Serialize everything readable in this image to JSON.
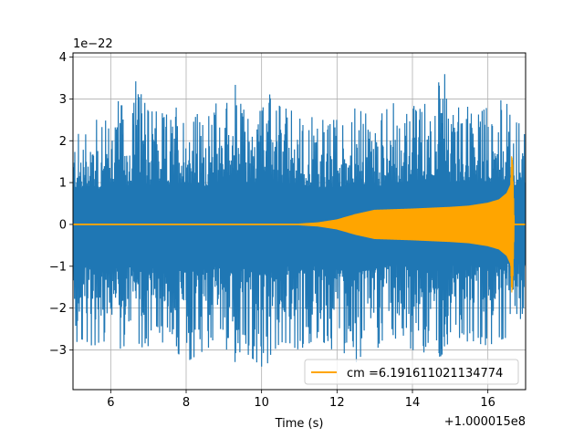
{
  "chart_data": {
    "type": "line",
    "title": "",
    "xlabel": "Time (s)",
    "ylabel": "",
    "y_scale_text": "1e−22",
    "x_offset_text": "+1.000015e8",
    "xlim": [
      5.0,
      17.0
    ],
    "ylim": [
      -3.95,
      4.1
    ],
    "xticks": [
      6,
      8,
      10,
      12,
      14,
      16
    ],
    "xtick_labels": [
      "6",
      "8",
      "10",
      "12",
      "14",
      "16"
    ],
    "yticks": [
      -3,
      -2,
      -1,
      0,
      1,
      2,
      3,
      4
    ],
    "ytick_labels": [
      "−3",
      "−2",
      "−1",
      "0",
      "1",
      "2",
      "3",
      "4"
    ],
    "grid": true,
    "legend_position": "lower-right",
    "colors": {
      "strain": "#1f77b4",
      "template": "#ffa500",
      "grid": "#b0b0b0"
    },
    "series": [
      {
        "kind": "noisy strain data",
        "x": [
          5.0,
          5.1,
          5.15,
          5.5,
          5.75,
          6.0,
          6.15,
          6.5,
          6.65,
          7.0,
          7.5,
          8.0,
          8.5,
          9.0,
          9.3,
          9.5,
          10.0,
          10.2,
          10.5,
          11.0,
          11.5,
          12.0,
          12.5,
          13.0,
          13.5,
          14.0,
          14.5,
          14.85,
          15.0,
          15.5,
          16.0,
          16.5,
          17.0
        ],
        "upper": [
          2.1,
          2.6,
          2.2,
          2.7,
          2.3,
          2.7,
          3.15,
          2.6,
          3.45,
          2.7,
          2.7,
          2.9,
          2.6,
          3.1,
          3.5,
          2.9,
          2.7,
          3.2,
          2.8,
          2.7,
          2.5,
          2.5,
          2.9,
          2.5,
          2.9,
          2.8,
          3.2,
          3.75,
          2.9,
          3.0,
          2.9,
          3.0,
          2.1
        ],
        "lower": [
          -2.2,
          -3.2,
          -2.7,
          -2.9,
          -3.25,
          -2.7,
          -3.0,
          -2.9,
          -3.35,
          -2.9,
          -2.8,
          -3.3,
          -3.0,
          -2.8,
          -3.6,
          -3.0,
          -3.4,
          -3.3,
          -2.8,
          -3.0,
          -2.7,
          -3.1,
          -3.3,
          -3.0,
          -2.7,
          -3.0,
          -3.1,
          -3.2,
          -2.8,
          -2.8,
          -2.9,
          -2.7,
          -2.1
        ]
      },
      {
        "name": "cm =6.191611021134774",
        "kind": "template waveform",
        "x": [
          5.0,
          11.0,
          11.5,
          12.0,
          12.5,
          13.0,
          14.0,
          15.0,
          15.5,
          16.0,
          16.3,
          16.5,
          16.6,
          16.63,
          16.66,
          16.7,
          17.0
        ],
        "amplitude": [
          0.02,
          0.02,
          0.05,
          0.12,
          0.25,
          0.35,
          0.38,
          0.42,
          0.45,
          0.52,
          0.6,
          0.75,
          0.95,
          1.65,
          1.5,
          0.02,
          0.02
        ]
      }
    ]
  }
}
